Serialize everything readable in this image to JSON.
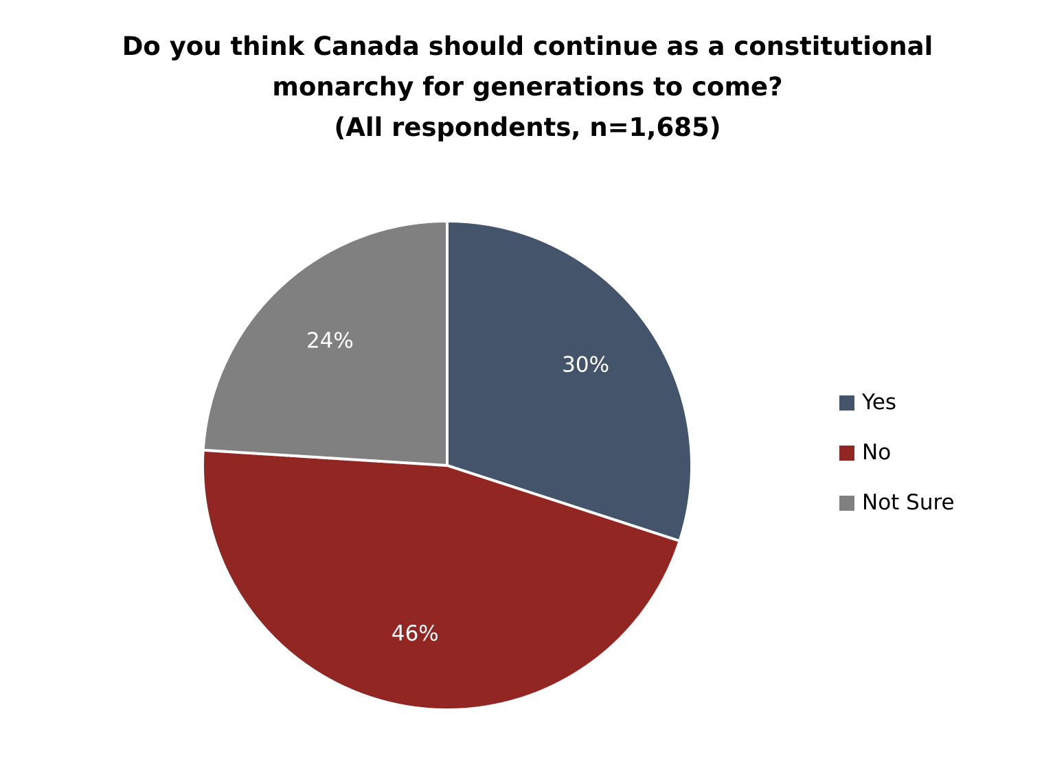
{
  "chart_data": {
    "type": "pie",
    "title_lines": [
      "Do you think Canada should continue as a constitutional",
      "monarchy for generations to come?",
      "(All respondents, n=1,685)"
    ],
    "slices": [
      {
        "name": "Yes",
        "value": 30,
        "label": "30%",
        "color": "#44546A"
      },
      {
        "name": "No",
        "value": 46,
        "label": "46%",
        "color": "#922623"
      },
      {
        "name": "Not Sure",
        "value": 24,
        "label": "24%",
        "color": "#808080"
      }
    ],
    "start_angle": "12 o'clock",
    "direction": "clockwise",
    "legend": {
      "placement": "right"
    }
  }
}
